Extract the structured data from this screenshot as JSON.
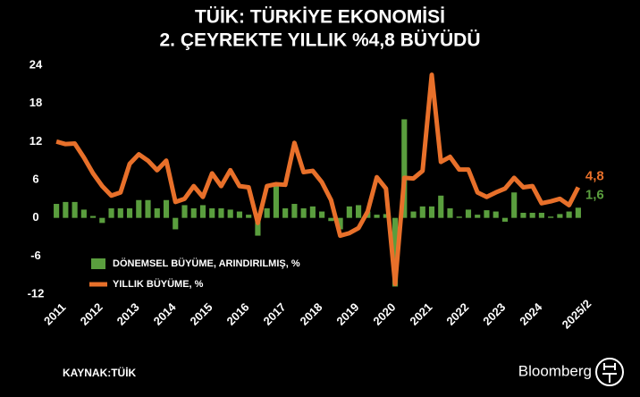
{
  "chart_data": {
    "type": "bar-line",
    "title": "TÜİK: TÜRKİYE EKONOMİSİ",
    "subtitle": "2. ÇEYREKTE YILLIK %4,8 BÜYÜDÜ",
    "categories": [
      "2011",
      null,
      null,
      null,
      "2012",
      null,
      null,
      null,
      "2013",
      null,
      null,
      null,
      "2014",
      null,
      null,
      null,
      "2015",
      null,
      null,
      null,
      "2016",
      null,
      null,
      null,
      "2017",
      null,
      null,
      null,
      "2018",
      null,
      null,
      null,
      "2019",
      null,
      null,
      null,
      "2020",
      null,
      null,
      null,
      "2021",
      null,
      null,
      null,
      "2022",
      null,
      null,
      null,
      "2023",
      null,
      null,
      null,
      "2024",
      null,
      null,
      null,
      null,
      "2025/2"
    ],
    "series": [
      {
        "name": "DÖNEMSEL BÜYÜME, ARINDIRILMIŞ, %",
        "type": "bar",
        "color": "#5a9e3e",
        "values": [
          2.2,
          2.5,
          2.5,
          1.3,
          0.3,
          -0.8,
          1.5,
          1.5,
          1.5,
          2.8,
          2.8,
          1.5,
          2.8,
          -1.8,
          2.0,
          1.5,
          2.0,
          1.5,
          1.5,
          1.3,
          1.0,
          0.5,
          -2.8,
          1.5,
          5.2,
          1.5,
          2.2,
          1.5,
          1.8,
          1.0,
          -0.5,
          -1.8,
          1.8,
          2.0,
          1.0,
          0.5,
          0.6,
          -10.8,
          15.5,
          1.0,
          1.8,
          1.8,
          3.5,
          1.5,
          0.2,
          1.3,
          0.5,
          1.2,
          1.0,
          -0.6,
          4.0,
          0.8,
          0.8,
          0.8,
          0.2,
          0.6,
          1.0,
          1.6
        ],
        "value_labels": [
          null,
          null,
          null,
          null,
          null,
          null,
          null,
          null,
          null,
          null,
          null,
          null,
          null,
          null,
          null,
          null,
          null,
          null,
          null,
          null,
          null,
          null,
          null,
          null,
          null,
          null,
          null,
          null,
          null,
          null,
          null,
          null,
          null,
          null,
          null,
          null,
          null,
          null,
          null,
          null,
          null,
          null,
          null,
          null,
          null,
          null,
          null,
          null,
          null,
          null,
          null,
          null,
          null,
          null,
          null,
          null,
          null,
          "1,6"
        ]
      },
      {
        "name": "YILLIK BÜYÜME,  %",
        "type": "line",
        "color": "#e8702a",
        "values": [
          12.0,
          11.6,
          11.7,
          9.5,
          7.0,
          5.0,
          3.5,
          4.0,
          8.5,
          10.0,
          9.0,
          7.5,
          9.0,
          2.5,
          3.0,
          5.0,
          3.3,
          7.0,
          5.0,
          7.5,
          5.0,
          4.8,
          -0.8,
          5.0,
          5.3,
          5.2,
          11.8,
          7.2,
          7.4,
          5.6,
          2.8,
          -2.8,
          -2.4,
          -1.6,
          1.0,
          6.4,
          4.6,
          -10.4,
          6.3,
          6.2,
          7.4,
          22.5,
          8.8,
          9.6,
          7.6,
          7.6,
          4.0,
          3.3,
          4.0,
          4.6,
          6.3,
          4.8,
          5.0,
          2.3,
          2.6,
          3.0,
          2.0,
          4.8
        ],
        "value_labels": [
          null,
          null,
          null,
          null,
          null,
          null,
          null,
          null,
          null,
          null,
          null,
          null,
          null,
          null,
          null,
          null,
          null,
          null,
          null,
          null,
          null,
          null,
          null,
          null,
          null,
          null,
          null,
          null,
          null,
          null,
          null,
          null,
          null,
          null,
          null,
          null,
          null,
          null,
          null,
          null,
          null,
          null,
          null,
          null,
          null,
          null,
          null,
          null,
          null,
          null,
          null,
          null,
          null,
          null,
          null,
          null,
          null,
          "4,8"
        ]
      }
    ],
    "ylim": [
      -12,
      24
    ],
    "yticks": [
      -12,
      -6,
      0,
      6,
      12,
      18,
      24
    ],
    "grid": false,
    "source": "KAYNAK:TÜİK",
    "brand": "Bloomberg"
  }
}
